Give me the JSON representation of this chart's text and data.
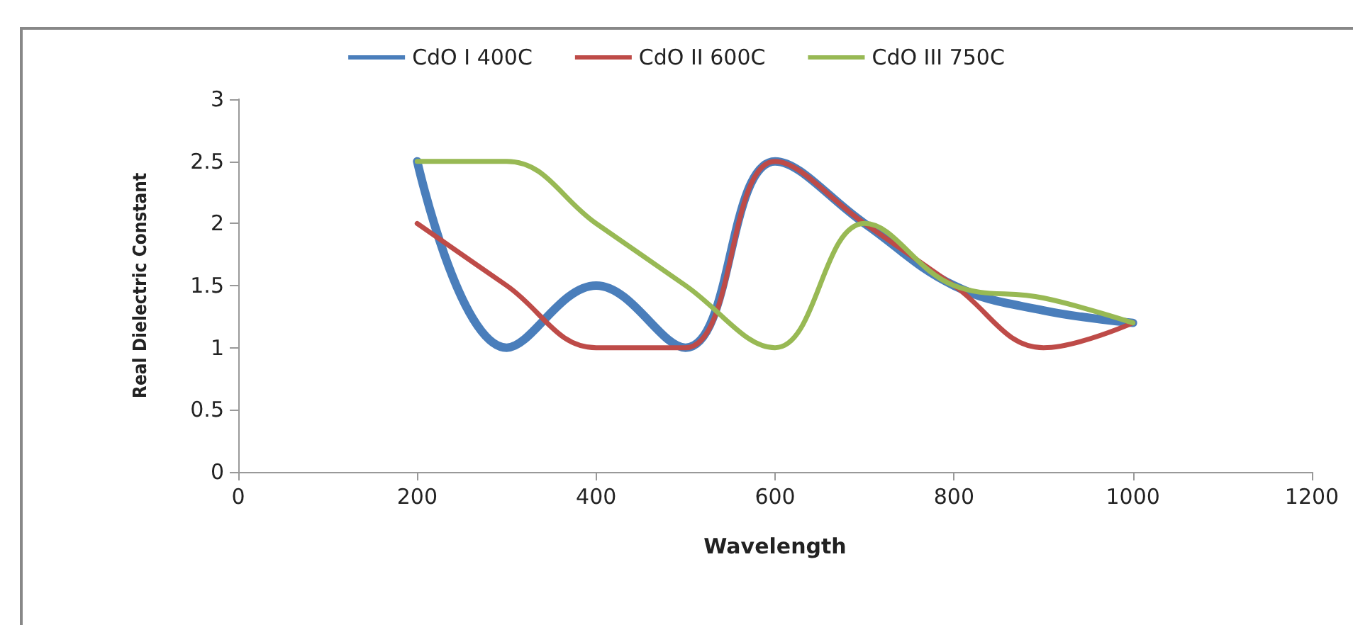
{
  "chart_data": {
    "type": "line",
    "xlabel": "Wavelength",
    "ylabel": "Real Dielectric Constant",
    "x": [
      200,
      300,
      400,
      500,
      600,
      700,
      800,
      900,
      1000
    ],
    "series": [
      {
        "name": "CdO I 400C",
        "color": "#4a7ebb",
        "values": [
          2.5,
          1.0,
          1.5,
          1.0,
          2.5,
          2.0,
          1.5,
          1.3,
          1.2
        ]
      },
      {
        "name": "CdO II 600C",
        "color": "#be4b48",
        "values": [
          2.0,
          1.5,
          1.0,
          1.0,
          2.5,
          2.0,
          1.5,
          1.0,
          1.2
        ]
      },
      {
        "name": "CdO III 750C",
        "color": "#98b954",
        "values": [
          2.5,
          2.5,
          2.0,
          1.5,
          1.0,
          2.0,
          1.5,
          1.4,
          1.2
        ]
      }
    ],
    "xlim": [
      0,
      1200
    ],
    "xticks": [
      0,
      200,
      400,
      600,
      800,
      1000,
      1200
    ],
    "ylim": [
      0,
      3
    ],
    "yticks": [
      0,
      0.5,
      1,
      1.5,
      2,
      2.5,
      3
    ],
    "grid": false,
    "legend": "top",
    "marker": "none",
    "line_style": "solid"
  }
}
